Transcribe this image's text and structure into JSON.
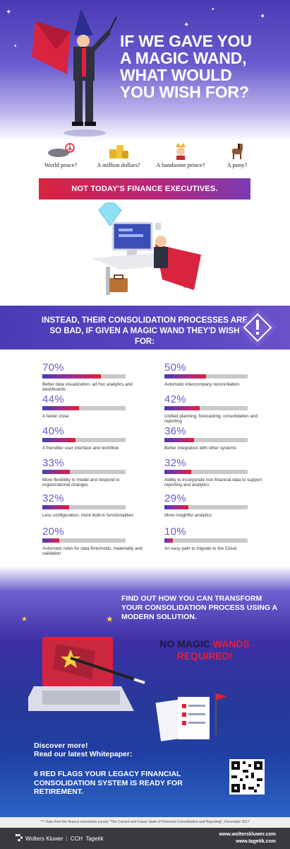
{
  "hero": {
    "title_lines": [
      "IF WE GAVE YOU",
      "A MAGIC WAND,",
      "WHAT WOULD",
      "YOU WISH FOR?"
    ]
  },
  "wishes": [
    {
      "label": "World peace?",
      "icon": "globe-peace-icon"
    },
    {
      "label": "A million dollars?",
      "icon": "coins-icon"
    },
    {
      "label": "A handsome prince?",
      "icon": "prince-icon"
    },
    {
      "label": "A pony?",
      "icon": "pony-icon"
    }
  ],
  "ribbon": {
    "text": "NOT TODAY'S FINANCE EXECUTIVES."
  },
  "band": {
    "text": "INSTEAD, THEIR CONSOLIDATION PROCESSES ARE SO BAD, IF GIVEN A MAGIC WAND THEY'D WISH FOR:"
  },
  "stats": [
    {
      "pct": "70%",
      "value": 70,
      "desc": "Better data visualization, ad hoc analytics and dashboards"
    },
    {
      "pct": "50%",
      "value": 50,
      "desc": "Automatic intercompany reconciliation"
    },
    {
      "pct": "44%",
      "value": 44,
      "desc": "A faster close"
    },
    {
      "pct": "42%",
      "value": 42,
      "desc": "Unified planning, forecasting, consolidation and reporting"
    },
    {
      "pct": "40%",
      "value": 40,
      "desc": "A friendlier user interface and workflow"
    },
    {
      "pct": "36%",
      "value": 36,
      "desc": "Better integration with other systems"
    },
    {
      "pct": "33%",
      "value": 33,
      "desc": "More flexibility to model and respond to organizational changes"
    },
    {
      "pct": "32%",
      "value": 32,
      "desc": "Ability to incorporate non-financial data to support reporting and analytics"
    },
    {
      "pct": "32%",
      "value": 32,
      "desc": "Less configuration, more built-in functionalities"
    },
    {
      "pct": "29%",
      "value": 29,
      "desc": "More insightful analytics"
    },
    {
      "pct": "20%",
      "value": 20,
      "desc": "Automatic rules for data thresholds, materiality and validation"
    },
    {
      "pct": "10%",
      "value": 10,
      "desc": "An easy path to migrate to the Cloud"
    }
  ],
  "cta": {
    "find": "FIND OUT HOW YOU CAN TRANSFORM YOUR CONSOLIDATION PROCESS USING A MODERN SOLUTION.",
    "nomagic_1": "NO MAGIC",
    "nomagic_2": "WANDS",
    "nomagic_3": "REQUIRED!",
    "discover_1": "Discover more!",
    "discover_2": "Read our latest Whitepaper:",
    "whitepaper": "6 RED FLAGS YOUR LEGACY FINANCIAL CONSOLIDATION SYSTEM IS READY FOR RETIREMENT."
  },
  "footnote": "*** Data from the finance executives survey \"The Current and Future State of Financial Consolidation and Reporting\", December 2017",
  "footer": {
    "brand_1": "Wolters Kluwer",
    "brand_sep": "|",
    "brand_2": "CCH",
    "brand_3": "Tagetik",
    "url_1": "www.wolterskluwer.com",
    "url_2": "www.tagetik.com"
  },
  "colors": {
    "purple": "#4a3bb5",
    "red": "#e01f3c",
    "magenta": "#9c2d8e"
  }
}
